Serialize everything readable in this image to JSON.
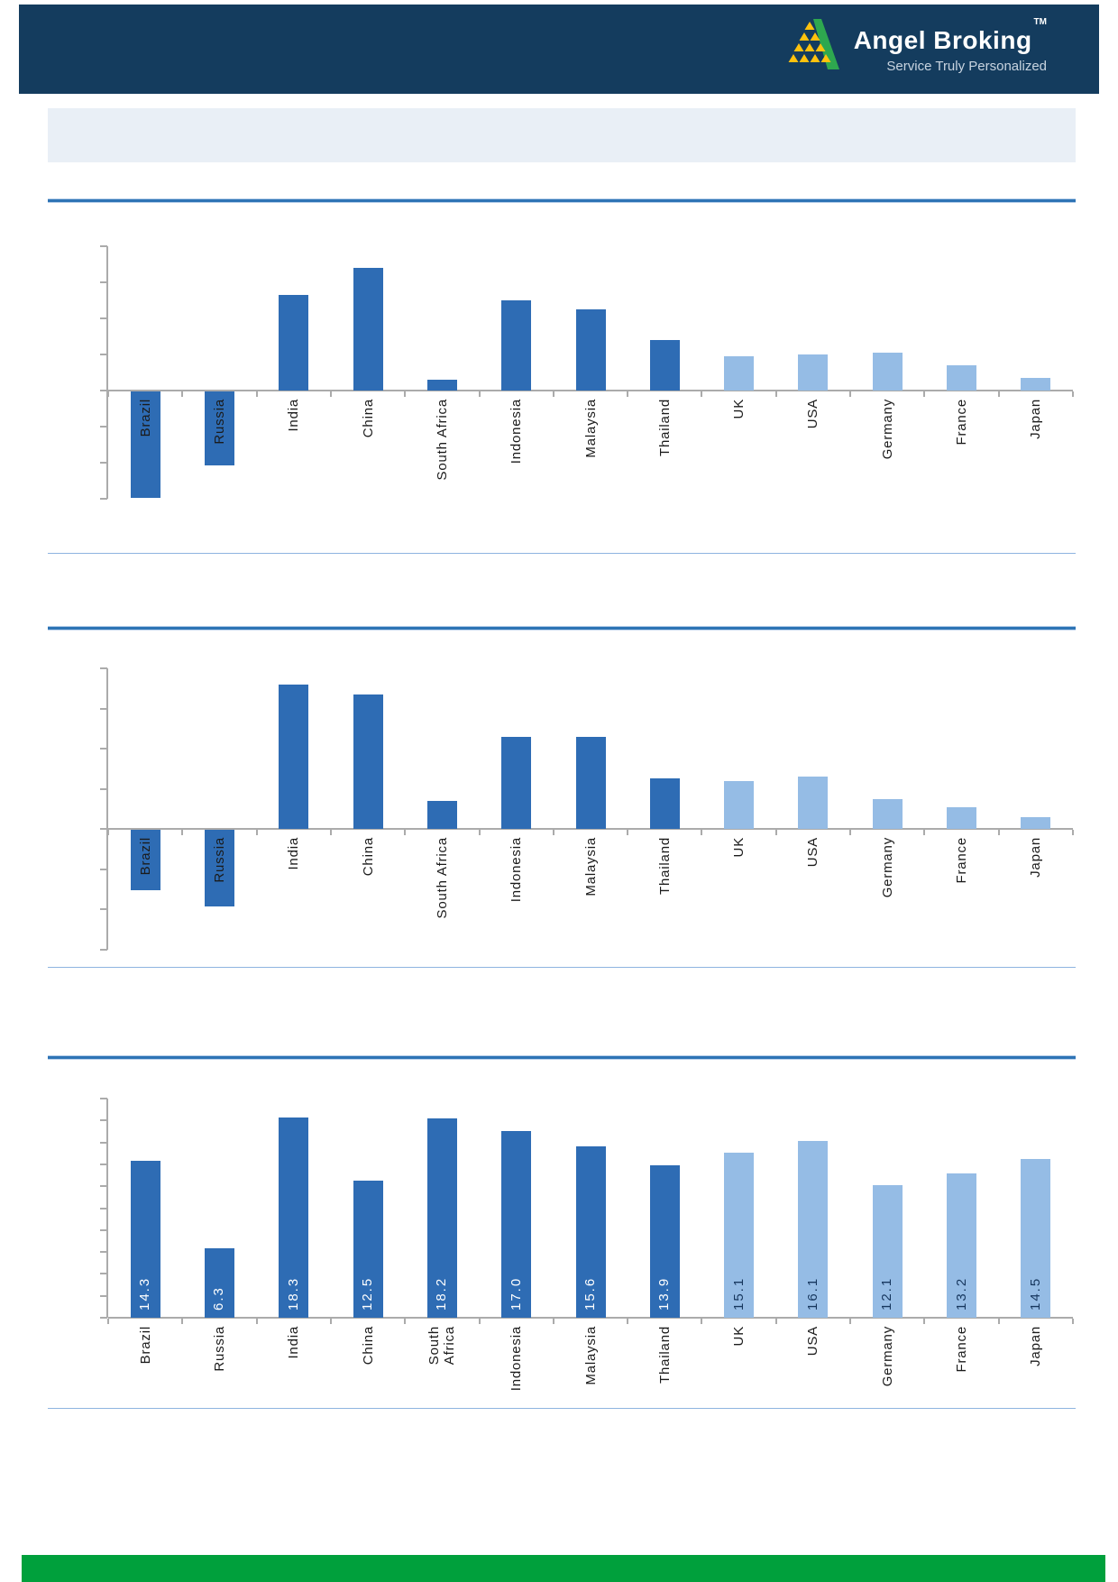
{
  "header": {
    "brand": "Angel Broking",
    "trademark": "TM",
    "tagline": "Service Truly Personalized"
  },
  "palette": {
    "bar_dark": "#2E6CB4",
    "bar_light": "#95BCE5",
    "header_navy": "#143C5E",
    "banner_fill": "#E9EFF6",
    "section_rule_blue": "#2E74B5",
    "end_rule_blue": "#8EB4E0",
    "footer_green": "#00A03C",
    "axis_gray": "#ABABAB",
    "value_label_on_dark": "#FFFFFF",
    "value_label_on_light": "#17375E"
  },
  "chart_data": [
    {
      "type": "bar",
      "title": "",
      "categories": [
        "Brazil",
        "Russia",
        "India",
        "China",
        "South Africa",
        "Indonesia",
        "Malaysia",
        "Thailand",
        "UK",
        "USA",
        "Germany",
        "France",
        "Japan"
      ],
      "values": [
        -2.95,
        -2.05,
        2.65,
        3.4,
        0.3,
        2.5,
        2.25,
        1.4,
        0.95,
        1.0,
        1.05,
        0.7,
        0.35
      ],
      "shades": [
        "dark",
        "dark",
        "dark",
        "dark",
        "dark",
        "dark",
        "dark",
        "dark",
        "light",
        "light",
        "light",
        "light",
        "light"
      ],
      "xlabel": "",
      "ylabel": "",
      "ylim": [
        -3,
        4
      ],
      "grid_step": 1,
      "y_axis_tick_labels_visible": false,
      "units": "gridline divisions (axis unlabeled)",
      "data_labels": [],
      "legend": "none"
    },
    {
      "type": "bar",
      "title": "",
      "categories": [
        "Brazil",
        "Russia",
        "India",
        "China",
        "South Africa",
        "Indonesia",
        "Malaysia",
        "Thailand",
        "UK",
        "USA",
        "Germany",
        "France",
        "Japan"
      ],
      "values": [
        -1.5,
        -1.9,
        3.6,
        3.35,
        0.7,
        2.3,
        2.3,
        1.25,
        1.2,
        1.3,
        0.75,
        0.55,
        0.3
      ],
      "shades": [
        "dark",
        "dark",
        "dark",
        "dark",
        "dark",
        "dark",
        "dark",
        "dark",
        "light",
        "light",
        "light",
        "light",
        "light"
      ],
      "xlabel": "",
      "ylabel": "",
      "ylim": [
        -3,
        4
      ],
      "grid_step": 1,
      "y_axis_tick_labels_visible": false,
      "units": "gridline divisions (axis unlabeled)",
      "data_labels": [],
      "legend": "none"
    },
    {
      "type": "bar",
      "title": "",
      "categories": [
        "Brazil",
        "Russia",
        "India",
        "China",
        "South Africa",
        "Indonesia",
        "Malaysia",
        "Thailand",
        "UK",
        "USA",
        "Germany",
        "France",
        "Japan"
      ],
      "values": [
        14.3,
        6.3,
        18.3,
        12.5,
        18.2,
        17.0,
        15.6,
        13.9,
        15.1,
        16.1,
        12.1,
        13.2,
        14.5
      ],
      "shades": [
        "dark",
        "dark",
        "dark",
        "dark",
        "dark",
        "dark",
        "dark",
        "dark",
        "light",
        "light",
        "light",
        "light",
        "light"
      ],
      "xlabel": "",
      "ylabel": "",
      "ylim": [
        0,
        20
      ],
      "grid_step": 2,
      "y_axis_tick_labels_visible": false,
      "data_labels": [
        "14.3",
        "6.3",
        "18.3",
        "12.5",
        "18.2",
        "17.0",
        "15.6",
        "13.9",
        "15.1",
        "16.1",
        "12.1",
        "13.2",
        "14.5"
      ],
      "legend": "none"
    }
  ]
}
